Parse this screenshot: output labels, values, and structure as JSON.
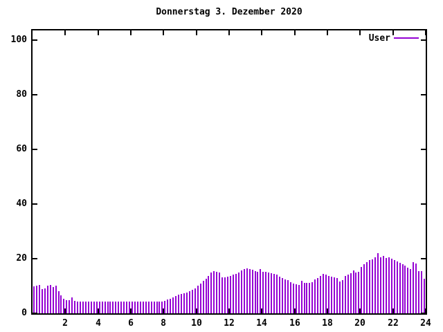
{
  "window": {
    "background": "#ffffff"
  },
  "legend": {
    "user_label": "User"
  },
  "chart_data": {
    "type": "bar",
    "title": "Donnerstag 3. Dezember 2020",
    "xlabel": "",
    "ylabel": "",
    "xlim": [
      0,
      24
    ],
    "ylim": [
      0,
      100
    ],
    "grid": false,
    "legend_position": "top-right-inside",
    "sample_interval_minutes": 10,
    "colors": {
      "bar": "#9400D3",
      "axis": "#000000",
      "background": "#ffffff"
    },
    "y_ticks": [
      {
        "v": 0,
        "label": "0"
      },
      {
        "v": 20,
        "label": "20"
      },
      {
        "v": 40,
        "label": "40"
      },
      {
        "v": 60,
        "label": "60"
      },
      {
        "v": 80,
        "label": "80"
      },
      {
        "v": 100,
        "label": "100"
      }
    ],
    "x_ticks": [
      {
        "v": 2,
        "label": "2"
      },
      {
        "v": 4,
        "label": "4"
      },
      {
        "v": 6,
        "label": "6"
      },
      {
        "v": 8,
        "label": "8"
      },
      {
        "v": 10,
        "label": "10"
      },
      {
        "v": 12,
        "label": "12"
      },
      {
        "v": 14,
        "label": "14"
      },
      {
        "v": 16,
        "label": "16"
      },
      {
        "v": 18,
        "label": "18"
      },
      {
        "v": 20,
        "label": "20"
      },
      {
        "v": 22,
        "label": "22"
      },
      {
        "v": 24,
        "label": "24"
      }
    ],
    "series": [
      {
        "name": "User",
        "color": "#9400D3",
        "x_start_hour": 0,
        "x_step_hours": 0.1667,
        "values": [
          9.8,
          10.2,
          10.3,
          8.8,
          9.2,
          10.2,
          10.3,
          9.6,
          10.2,
          8.0,
          6.7,
          5.3,
          4.9,
          4.9,
          5.8,
          4.6,
          4.4,
          4.4,
          4.3,
          4.4,
          4.3,
          4.4,
          4.3,
          4.4,
          4.3,
          4.4,
          4.3,
          4.4,
          4.4,
          4.3,
          4.4,
          4.3,
          4.4,
          4.3,
          4.4,
          4.4,
          4.3,
          4.4,
          4.3,
          4.4,
          4.3,
          4.4,
          4.4,
          4.3,
          4.4,
          4.3,
          4.4,
          4.4,
          4.6,
          5.0,
          5.4,
          5.9,
          6.4,
          6.9,
          7.2,
          7.4,
          7.7,
          8.0,
          8.5,
          9.1,
          10.0,
          11.0,
          12.0,
          12.6,
          13.6,
          15.0,
          15.4,
          15.2,
          15.0,
          13.2,
          13.2,
          13.4,
          13.6,
          14.3,
          14.5,
          15.0,
          15.8,
          16.3,
          16.5,
          16.2,
          15.9,
          15.5,
          15.3,
          16.3,
          15.3,
          15.1,
          15.0,
          14.6,
          14.4,
          14.3,
          13.3,
          13.0,
          12.4,
          12.2,
          11.4,
          11.0,
          10.6,
          10.4,
          12.0,
          11.2,
          11.2,
          11.1,
          11.3,
          12.3,
          12.9,
          13.7,
          14.5,
          14.2,
          13.7,
          13.4,
          13.1,
          12.9,
          11.7,
          12.2,
          13.6,
          14.2,
          14.6,
          15.6,
          15.0,
          15.3,
          17.0,
          17.9,
          18.7,
          19.4,
          19.8,
          20.4,
          22.0,
          20.4,
          20.9,
          20.3,
          20.5,
          20.0,
          19.5,
          19.0,
          18.6,
          18.0,
          17.5,
          16.6,
          16.1,
          18.8,
          18.3,
          15.4,
          15.5,
          12.6
        ]
      }
    ]
  }
}
